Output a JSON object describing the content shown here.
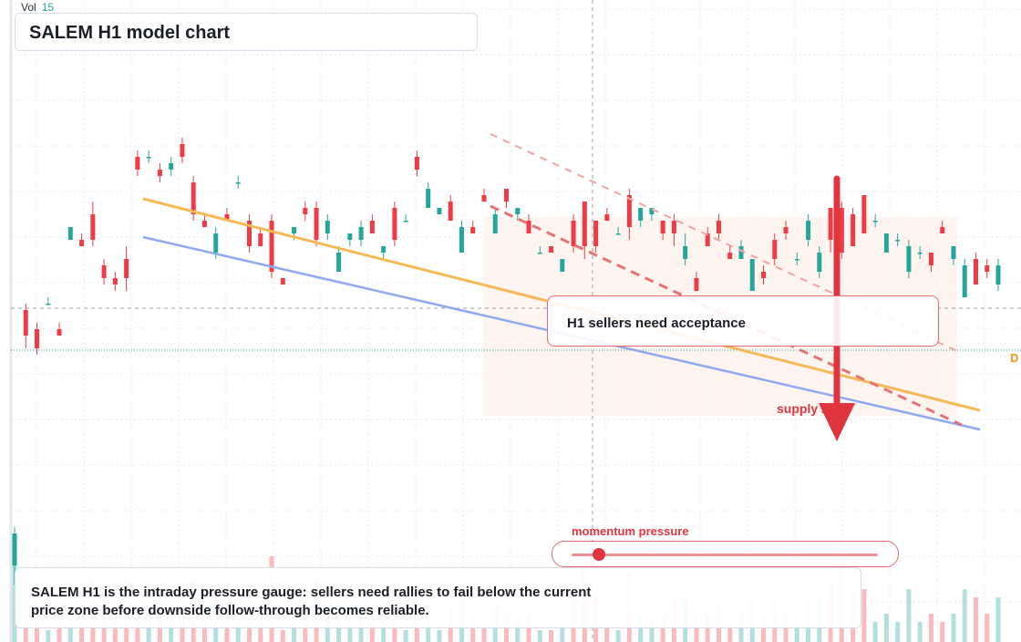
{
  "header": {
    "title": "SALEM H1 model chart",
    "vol_label": "Vol",
    "vol_value": "15"
  },
  "annotations": {
    "callout": "H1 sellers need acceptance",
    "supply_zone": "supply zone",
    "momentum_label": "momentum pressure",
    "momentum_level": 0.09,
    "summary": "SALEM H1 is the intraday pressure gauge: sellers need rallies to fail below the current price zone before downside follow-through becomes reliable.",
    "edge_label": "D"
  },
  "colors": {
    "up": "#26a69a",
    "down": "#ef3b45",
    "trend_orange": "#f7b955",
    "trend_blue": "#8ea9f0",
    "accent_red": "#e0353f"
  },
  "chart_data": {
    "type": "candlestick",
    "title": "SALEM H1 model chart",
    "grid": true,
    "candles": [
      {
        "o": 12,
        "c": 17,
        "h": 18,
        "l": 9
      },
      {
        "o": 52,
        "c": 48,
        "h": 53,
        "l": 46
      },
      {
        "o": 49,
        "c": 46,
        "h": 50,
        "l": 45
      },
      {
        "o": 53,
        "c": 53,
        "h": 54,
        "l": 53
      },
      {
        "o": 49,
        "c": 48,
        "h": 50,
        "l": 48
      },
      {
        "o": 63,
        "c": 65,
        "h": 65,
        "l": 63
      },
      {
        "o": 63,
        "c": 62,
        "h": 64,
        "l": 62
      },
      {
        "o": 67,
        "c": 63,
        "h": 69,
        "l": 62
      },
      {
        "o": 59,
        "c": 57,
        "h": 60,
        "l": 56
      },
      {
        "o": 57,
        "c": 56,
        "h": 58,
        "l": 55
      },
      {
        "o": 60,
        "c": 57,
        "h": 62,
        "l": 55
      },
      {
        "o": 76,
        "c": 74,
        "h": 77,
        "l": 73
      },
      {
        "o": 76,
        "c": 76,
        "h": 77,
        "l": 75
      },
      {
        "o": 74,
        "c": 73,
        "h": 75,
        "l": 72
      },
      {
        "o": 74,
        "c": 75,
        "h": 76,
        "l": 73
      },
      {
        "o": 78,
        "c": 76,
        "h": 79,
        "l": 75
      },
      {
        "o": 72,
        "c": 67,
        "h": 73,
        "l": 66
      },
      {
        "o": 66,
        "c": 65,
        "h": 67,
        "l": 65
      },
      {
        "o": 61,
        "c": 64,
        "h": 65,
        "l": 60
      },
      {
        "o": 67,
        "c": 66,
        "h": 68,
        "l": 66
      },
      {
        "o": 72,
        "c": 72,
        "h": 73,
        "l": 71
      },
      {
        "o": 66,
        "c": 62,
        "h": 67,
        "l": 61
      },
      {
        "o": 64,
        "c": 62,
        "h": 65,
        "l": 62
      },
      {
        "o": 66,
        "c": 58,
        "h": 67,
        "l": 57
      },
      {
        "o": 57,
        "c": 56,
        "h": 57,
        "l": 56
      },
      {
        "o": 64,
        "c": 65,
        "h": 65,
        "l": 63
      },
      {
        "o": 68,
        "c": 67,
        "h": 69,
        "l": 66
      },
      {
        "o": 68,
        "c": 63,
        "h": 69,
        "l": 62
      },
      {
        "o": 64,
        "c": 66,
        "h": 67,
        "l": 63
      },
      {
        "o": 58,
        "c": 61,
        "h": 62,
        "l": 58
      },
      {
        "o": 63,
        "c": 64,
        "h": 64,
        "l": 62
      },
      {
        "o": 63,
        "c": 65,
        "h": 66,
        "l": 62
      },
      {
        "o": 66,
        "c": 64,
        "h": 67,
        "l": 64
      },
      {
        "o": 61,
        "c": 62,
        "h": 62,
        "l": 60
      },
      {
        "o": 68,
        "c": 63,
        "h": 69,
        "l": 62
      },
      {
        "o": 66,
        "c": 66,
        "h": 67,
        "l": 66
      },
      {
        "o": 76,
        "c": 74,
        "h": 77,
        "l": 73
      },
      {
        "o": 68,
        "c": 71,
        "h": 72,
        "l": 68
      },
      {
        "o": 67,
        "c": 68,
        "h": 68,
        "l": 67
      },
      {
        "o": 69,
        "c": 66,
        "h": 70,
        "l": 66
      },
      {
        "o": 61,
        "c": 65,
        "h": 66,
        "l": 61
      },
      {
        "o": 65,
        "c": 64,
        "h": 66,
        "l": 64
      },
      {
        "o": 70,
        "c": 69,
        "h": 71,
        "l": 69
      },
      {
        "o": 64,
        "c": 67,
        "h": 68,
        "l": 64
      },
      {
        "o": 71,
        "c": 69,
        "h": 71,
        "l": 68
      },
      {
        "o": 67,
        "c": 68,
        "h": 68,
        "l": 66
      },
      {
        "o": 66,
        "c": 64,
        "h": 67,
        "l": 64
      },
      {
        "o": 61,
        "c": 61,
        "h": 62,
        "l": 61
      },
      {
        "o": 62,
        "c": 61,
        "h": 62,
        "l": 61
      },
      {
        "o": 58,
        "c": 60,
        "h": 60,
        "l": 58
      },
      {
        "o": 66,
        "c": 62,
        "h": 67,
        "l": 61
      },
      {
        "o": 69,
        "c": 62,
        "h": 69,
        "l": 60
      },
      {
        "o": 66,
        "c": 62,
        "h": 66,
        "l": 61
      },
      {
        "o": 67,
        "c": 66,
        "h": 68,
        "l": 66
      },
      {
        "o": 64,
        "c": 64,
        "h": 65,
        "l": 64
      },
      {
        "o": 70,
        "c": 65,
        "h": 71,
        "l": 63
      },
      {
        "o": 66,
        "c": 68,
        "h": 68,
        "l": 65
      },
      {
        "o": 67,
        "c": 68,
        "h": 68,
        "l": 66
      },
      {
        "o": 66,
        "c": 64,
        "h": 66,
        "l": 63
      },
      {
        "o": 66,
        "c": 64,
        "h": 67,
        "l": 62
      },
      {
        "o": 60,
        "c": 62,
        "h": 64,
        "l": 59
      },
      {
        "o": 57,
        "c": 55,
        "h": 58,
        "l": 55
      },
      {
        "o": 64,
        "c": 62,
        "h": 65,
        "l": 62
      },
      {
        "o": 66,
        "c": 64,
        "h": 67,
        "l": 63
      },
      {
        "o": 61,
        "c": 60,
        "h": 62,
        "l": 60
      },
      {
        "o": 60,
        "c": 62,
        "h": 63,
        "l": 60
      },
      {
        "o": 55,
        "c": 60,
        "h": 60,
        "l": 55
      },
      {
        "o": 58,
        "c": 57,
        "h": 59,
        "l": 56
      },
      {
        "o": 63,
        "c": 60,
        "h": 64,
        "l": 59
      },
      {
        "o": 65,
        "c": 64,
        "h": 66,
        "l": 63
      },
      {
        "o": 60,
        "c": 60,
        "h": 61,
        "l": 59
      },
      {
        "o": 63,
        "c": 66,
        "h": 67,
        "l": 62
      },
      {
        "o": 58,
        "c": 61,
        "h": 62,
        "l": 57
      },
      {
        "o": 68,
        "c": 63,
        "h": 68,
        "l": 61
      },
      {
        "o": 68,
        "c": 61,
        "h": 69,
        "l": 60
      },
      {
        "o": 67,
        "c": 62,
        "h": 68,
        "l": 62
      },
      {
        "o": 70,
        "c": 64,
        "h": 70,
        "l": 64
      },
      {
        "o": 66,
        "c": 66,
        "h": 67,
        "l": 65
      },
      {
        "o": 61,
        "c": 64,
        "h": 64,
        "l": 61
      },
      {
        "o": 63,
        "c": 63,
        "h": 64,
        "l": 62
      },
      {
        "o": 58,
        "c": 62,
        "h": 63,
        "l": 57
      },
      {
        "o": 61,
        "c": 61,
        "h": 62,
        "l": 60
      },
      {
        "o": 61,
        "c": 59,
        "h": 61,
        "l": 58
      },
      {
        "o": 65,
        "c": 64,
        "h": 66,
        "l": 64
      },
      {
        "o": 60,
        "c": 62,
        "h": 62,
        "l": 59
      },
      {
        "o": 54,
        "c": 59,
        "h": 60,
        "l": 54
      },
      {
        "o": 60,
        "c": 56,
        "h": 61,
        "l": 56
      },
      {
        "o": 59,
        "c": 58,
        "h": 60,
        "l": 57
      },
      {
        "o": 56,
        "c": 59,
        "h": 60,
        "l": 55
      }
    ]
  }
}
